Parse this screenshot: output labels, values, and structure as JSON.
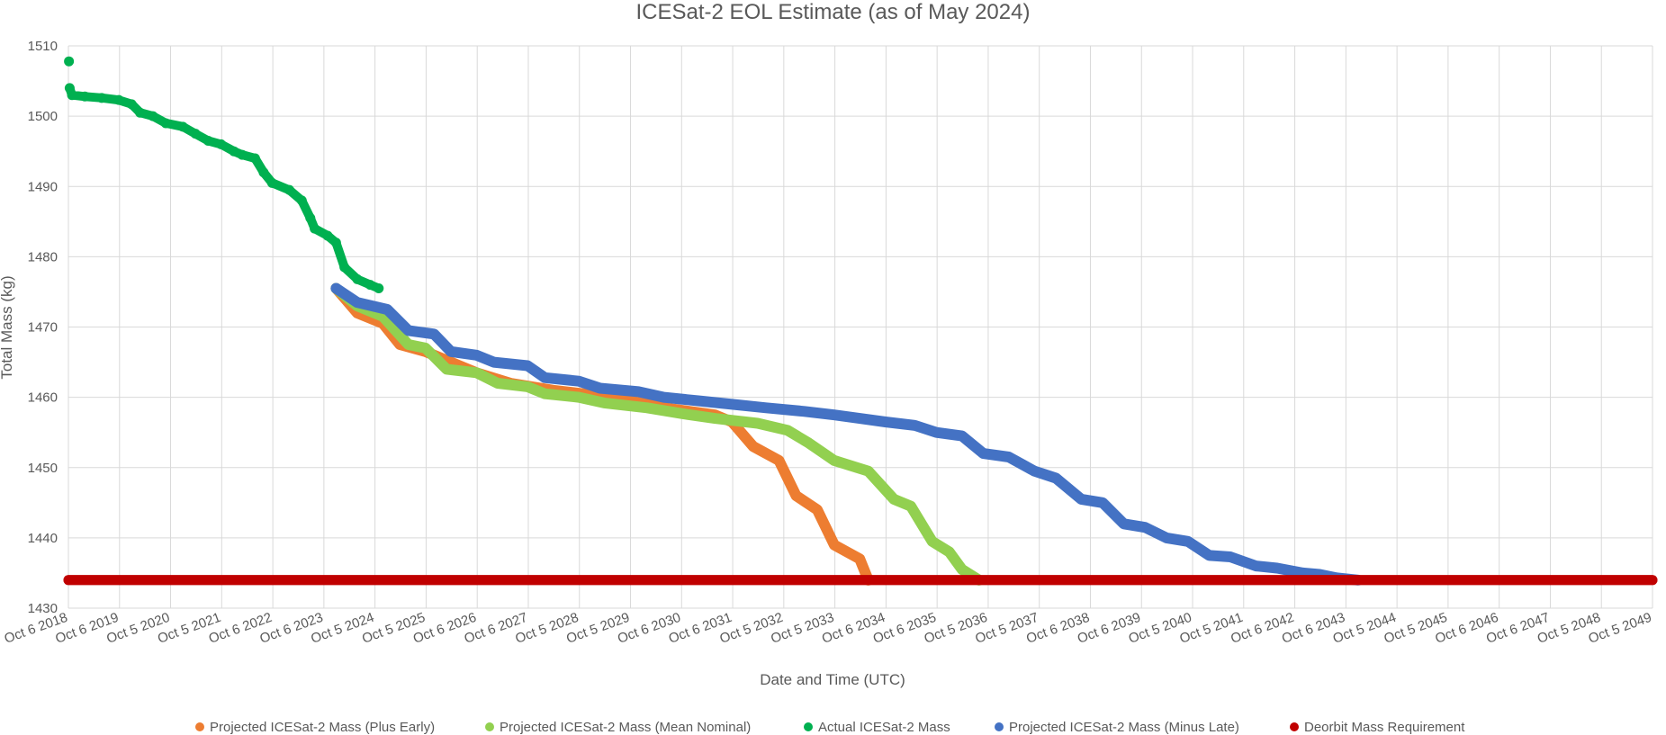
{
  "chart_data": {
    "type": "line",
    "title": "ICESat-2 EOL Estimate (as of May 2024)",
    "xlabel": "Date and Time (UTC)",
    "ylabel": "Total Mass (kg)",
    "ylim": [
      1430,
      1510
    ],
    "yticks": [
      1430,
      1440,
      1450,
      1460,
      1470,
      1480,
      1490,
      1500,
      1510
    ],
    "xlim": [
      "2018-10-06",
      "2049-10-05"
    ],
    "xtick_labels": [
      "Oct 6 2018",
      "Oct 6 2019",
      "Oct 5 2020",
      "Oct 5 2021",
      "Oct 6 2022",
      "Oct 6 2023",
      "Oct 5 2024",
      "Oct 5 2025",
      "Oct 6 2026",
      "Oct 6 2027",
      "Oct 5 2028",
      "Oct 5 2029",
      "Oct 6 2030",
      "Oct 6 2031",
      "Oct 5 2032",
      "Oct 5 2033",
      "Oct 6 2034",
      "Oct 6 2035",
      "Oct 5 2036",
      "Oct 5 2037",
      "Oct 6 2038",
      "Oct 6 2039",
      "Oct 5 2040",
      "Oct 5 2041",
      "Oct 6 2042",
      "Oct 6 2043",
      "Oct 5 2044",
      "Oct 5 2045",
      "Oct 6 2046",
      "Oct 6 2047",
      "Oct 5 2048",
      "Oct 5 2049"
    ],
    "grid": true,
    "legend_position": "bottom",
    "series": [
      {
        "name": "Projected ICESat-2 Mass (Plus Early)",
        "color": "#ED7D31",
        "points": [
          [
            "2024-01-01",
            1475.5
          ],
          [
            "2024-06-01",
            1472
          ],
          [
            "2024-12-01",
            1470.5
          ],
          [
            "2025-04-01",
            1467.5
          ],
          [
            "2025-10-01",
            1466.5
          ],
          [
            "2026-04-01",
            1465
          ],
          [
            "2026-10-01",
            1463.5
          ],
          [
            "2027-06-01",
            1462
          ],
          [
            "2028-04-01",
            1461
          ],
          [
            "2029-06-01",
            1460
          ],
          [
            "2030-06-01",
            1458.5
          ],
          [
            "2031-06-01",
            1457.5
          ],
          [
            "2031-10-01",
            1456.5
          ],
          [
            "2032-03-01",
            1453
          ],
          [
            "2032-09-01",
            1451
          ],
          [
            "2033-01-01",
            1446
          ],
          [
            "2033-06-01",
            1444
          ],
          [
            "2033-10-01",
            1439
          ],
          [
            "2034-04-01",
            1437
          ],
          [
            "2034-06-01",
            1434
          ]
        ]
      },
      {
        "name": "Projected ICESat-2 Mass (Mean Nominal)",
        "color": "#92D050",
        "points": [
          [
            "2024-01-01",
            1475.5
          ],
          [
            "2024-06-01",
            1473
          ],
          [
            "2024-12-01",
            1471.5
          ],
          [
            "2025-06-01",
            1467.5
          ],
          [
            "2025-10-01",
            1467
          ],
          [
            "2026-03-01",
            1464
          ],
          [
            "2026-10-01",
            1463.5
          ],
          [
            "2027-03-01",
            1462
          ],
          [
            "2027-10-01",
            1461.5
          ],
          [
            "2028-02-01",
            1460.5
          ],
          [
            "2028-10-01",
            1460
          ],
          [
            "2029-04-01",
            1459.2
          ],
          [
            "2030-02-01",
            1458.5
          ],
          [
            "2030-10-01",
            1457.7
          ],
          [
            "2031-06-01",
            1457
          ],
          [
            "2032-04-01",
            1456.3
          ],
          [
            "2032-11-01",
            1455.3
          ],
          [
            "2033-04-01",
            1453.5
          ],
          [
            "2033-10-01",
            1451
          ],
          [
            "2034-06-01",
            1449.5
          ],
          [
            "2034-12-01",
            1445.5
          ],
          [
            "2035-04-01",
            1444.5
          ],
          [
            "2035-09-01",
            1439.5
          ],
          [
            "2036-01-01",
            1438
          ],
          [
            "2036-04-01",
            1435.5
          ],
          [
            "2036-08-01",
            1434
          ]
        ]
      },
      {
        "name": "Actual ICESat-2 Mass",
        "color": "#00B050",
        "points": [
          [
            "2018-10-10",
            1507.8
          ],
          [
            "2018-10-15",
            1504
          ],
          [
            "2018-11-01",
            1503
          ],
          [
            "2019-02-01",
            1502.8
          ],
          [
            "2019-06-01",
            1502.6
          ],
          [
            "2019-10-01",
            1502.3
          ],
          [
            "2020-01-01",
            1501.7
          ],
          [
            "2020-03-01",
            1500.5
          ],
          [
            "2020-06-01",
            1500
          ],
          [
            "2020-09-01",
            1499
          ],
          [
            "2021-01-01",
            1498.5
          ],
          [
            "2021-04-01",
            1497.5
          ],
          [
            "2021-07-01",
            1496.5
          ],
          [
            "2021-10-01",
            1496
          ],
          [
            "2022-01-01",
            1495
          ],
          [
            "2022-03-01",
            1494.5
          ],
          [
            "2022-06-01",
            1494
          ],
          [
            "2022-08-01",
            1492
          ],
          [
            "2022-10-01",
            1490.5
          ],
          [
            "2023-02-01",
            1489.5
          ],
          [
            "2023-05-01",
            1488
          ],
          [
            "2023-07-01",
            1485.5
          ],
          [
            "2023-08-01",
            1484
          ],
          [
            "2023-11-01",
            1483
          ],
          [
            "2024-01-01",
            1482
          ],
          [
            "2024-03-01",
            1478.5
          ],
          [
            "2024-06-01",
            1476.8
          ],
          [
            "2024-09-01",
            1476
          ],
          [
            "2024-11-01",
            1475.5
          ]
        ]
      },
      {
        "name": "Projected ICESat-2 Mass (Minus Late)",
        "color": "#4472C4",
        "points": [
          [
            "2024-01-01",
            1475.5
          ],
          [
            "2024-06-01",
            1473.5
          ],
          [
            "2025-01-01",
            1472.5
          ],
          [
            "2025-06-01",
            1469.5
          ],
          [
            "2025-12-01",
            1469
          ],
          [
            "2026-04-01",
            1466.5
          ],
          [
            "2026-10-01",
            1466
          ],
          [
            "2027-02-01",
            1465
          ],
          [
            "2027-10-01",
            1464.5
          ],
          [
            "2028-02-01",
            1462.8
          ],
          [
            "2028-10-01",
            1462.3
          ],
          [
            "2029-03-01",
            1461.3
          ],
          [
            "2029-12-01",
            1460.8
          ],
          [
            "2030-06-01",
            1460
          ],
          [
            "2031-02-01",
            1459.5
          ],
          [
            "2031-10-01",
            1459
          ],
          [
            "2032-06-01",
            1458.5
          ],
          [
            "2033-03-01",
            1458
          ],
          [
            "2033-10-01",
            1457.5
          ],
          [
            "2034-04-01",
            1457
          ],
          [
            "2034-10-01",
            1456.5
          ],
          [
            "2035-05-01",
            1456
          ],
          [
            "2035-10-01",
            1455
          ],
          [
            "2036-04-01",
            1454.5
          ],
          [
            "2036-09-01",
            1452
          ],
          [
            "2037-03-01",
            1451.5
          ],
          [
            "2037-09-01",
            1449.5
          ],
          [
            "2038-02-01",
            1448.5
          ],
          [
            "2038-08-01",
            1445.5
          ],
          [
            "2039-01-01",
            1445
          ],
          [
            "2039-06-01",
            1442
          ],
          [
            "2039-11-01",
            1441.5
          ],
          [
            "2040-04-01",
            1440
          ],
          [
            "2040-09-01",
            1439.5
          ],
          [
            "2041-02-01",
            1437.5
          ],
          [
            "2041-07-01",
            1437.3
          ],
          [
            "2042-01-01",
            1436
          ],
          [
            "2042-06-01",
            1435.7
          ],
          [
            "2042-12-01",
            1435
          ],
          [
            "2043-04-01",
            1434.8
          ],
          [
            "2043-08-01",
            1434.3
          ],
          [
            "2044-01-01",
            1434
          ]
        ]
      },
      {
        "name": "Deorbit Mass Requirement",
        "color": "#C00000",
        "points": [
          [
            "2018-10-06",
            1434
          ],
          [
            "2049-10-05",
            1434
          ]
        ]
      }
    ]
  }
}
